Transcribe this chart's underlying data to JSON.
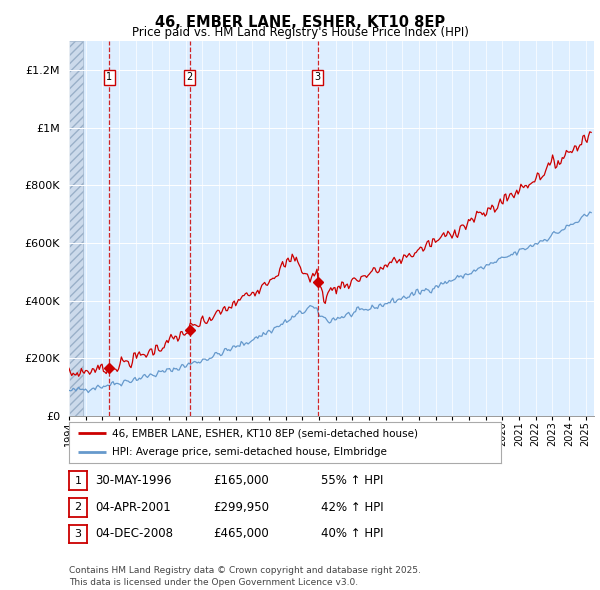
{
  "title": "46, EMBER LANE, ESHER, KT10 8EP",
  "subtitle": "Price paid vs. HM Land Registry's House Price Index (HPI)",
  "xlim": [
    1994.0,
    2025.5
  ],
  "ylim": [
    0,
    1300000
  ],
  "yticks": [
    0,
    200000,
    400000,
    600000,
    800000,
    1000000,
    1200000
  ],
  "ytick_labels": [
    "£0",
    "£200K",
    "£400K",
    "£600K",
    "£800K",
    "£1M",
    "£1.2M"
  ],
  "xticks": [
    1994,
    1995,
    1996,
    1997,
    1998,
    1999,
    2000,
    2001,
    2002,
    2003,
    2004,
    2005,
    2006,
    2007,
    2008,
    2009,
    2010,
    2011,
    2012,
    2013,
    2014,
    2015,
    2016,
    2017,
    2018,
    2019,
    2020,
    2021,
    2022,
    2023,
    2024,
    2025
  ],
  "sale_dates": [
    1996.41,
    2001.25,
    2008.92
  ],
  "sale_prices": [
    165000,
    299950,
    465000
  ],
  "sale_labels": [
    "1",
    "2",
    "3"
  ],
  "sale_date_strs": [
    "30-MAY-1996",
    "04-APR-2001",
    "04-DEC-2008"
  ],
  "sale_price_strs": [
    "£165,000",
    "£299,950",
    "£465,000"
  ],
  "sale_hpi_strs": [
    "55% ↑ HPI",
    "42% ↑ HPI",
    "40% ↑ HPI"
  ],
  "legend_label_red": "46, EMBER LANE, ESHER, KT10 8EP (semi-detached house)",
  "legend_label_blue": "HPI: Average price, semi-detached house, Elmbridge",
  "footnote": "Contains HM Land Registry data © Crown copyright and database right 2025.\nThis data is licensed under the Open Government Licence v3.0.",
  "line_color_red": "#cc0000",
  "line_color_blue": "#6699cc",
  "background_color": "#ffffff",
  "plot_bg_color": "#ddeeff",
  "grid_color": "#ffffff",
  "hatch_color": "#bbccdd"
}
